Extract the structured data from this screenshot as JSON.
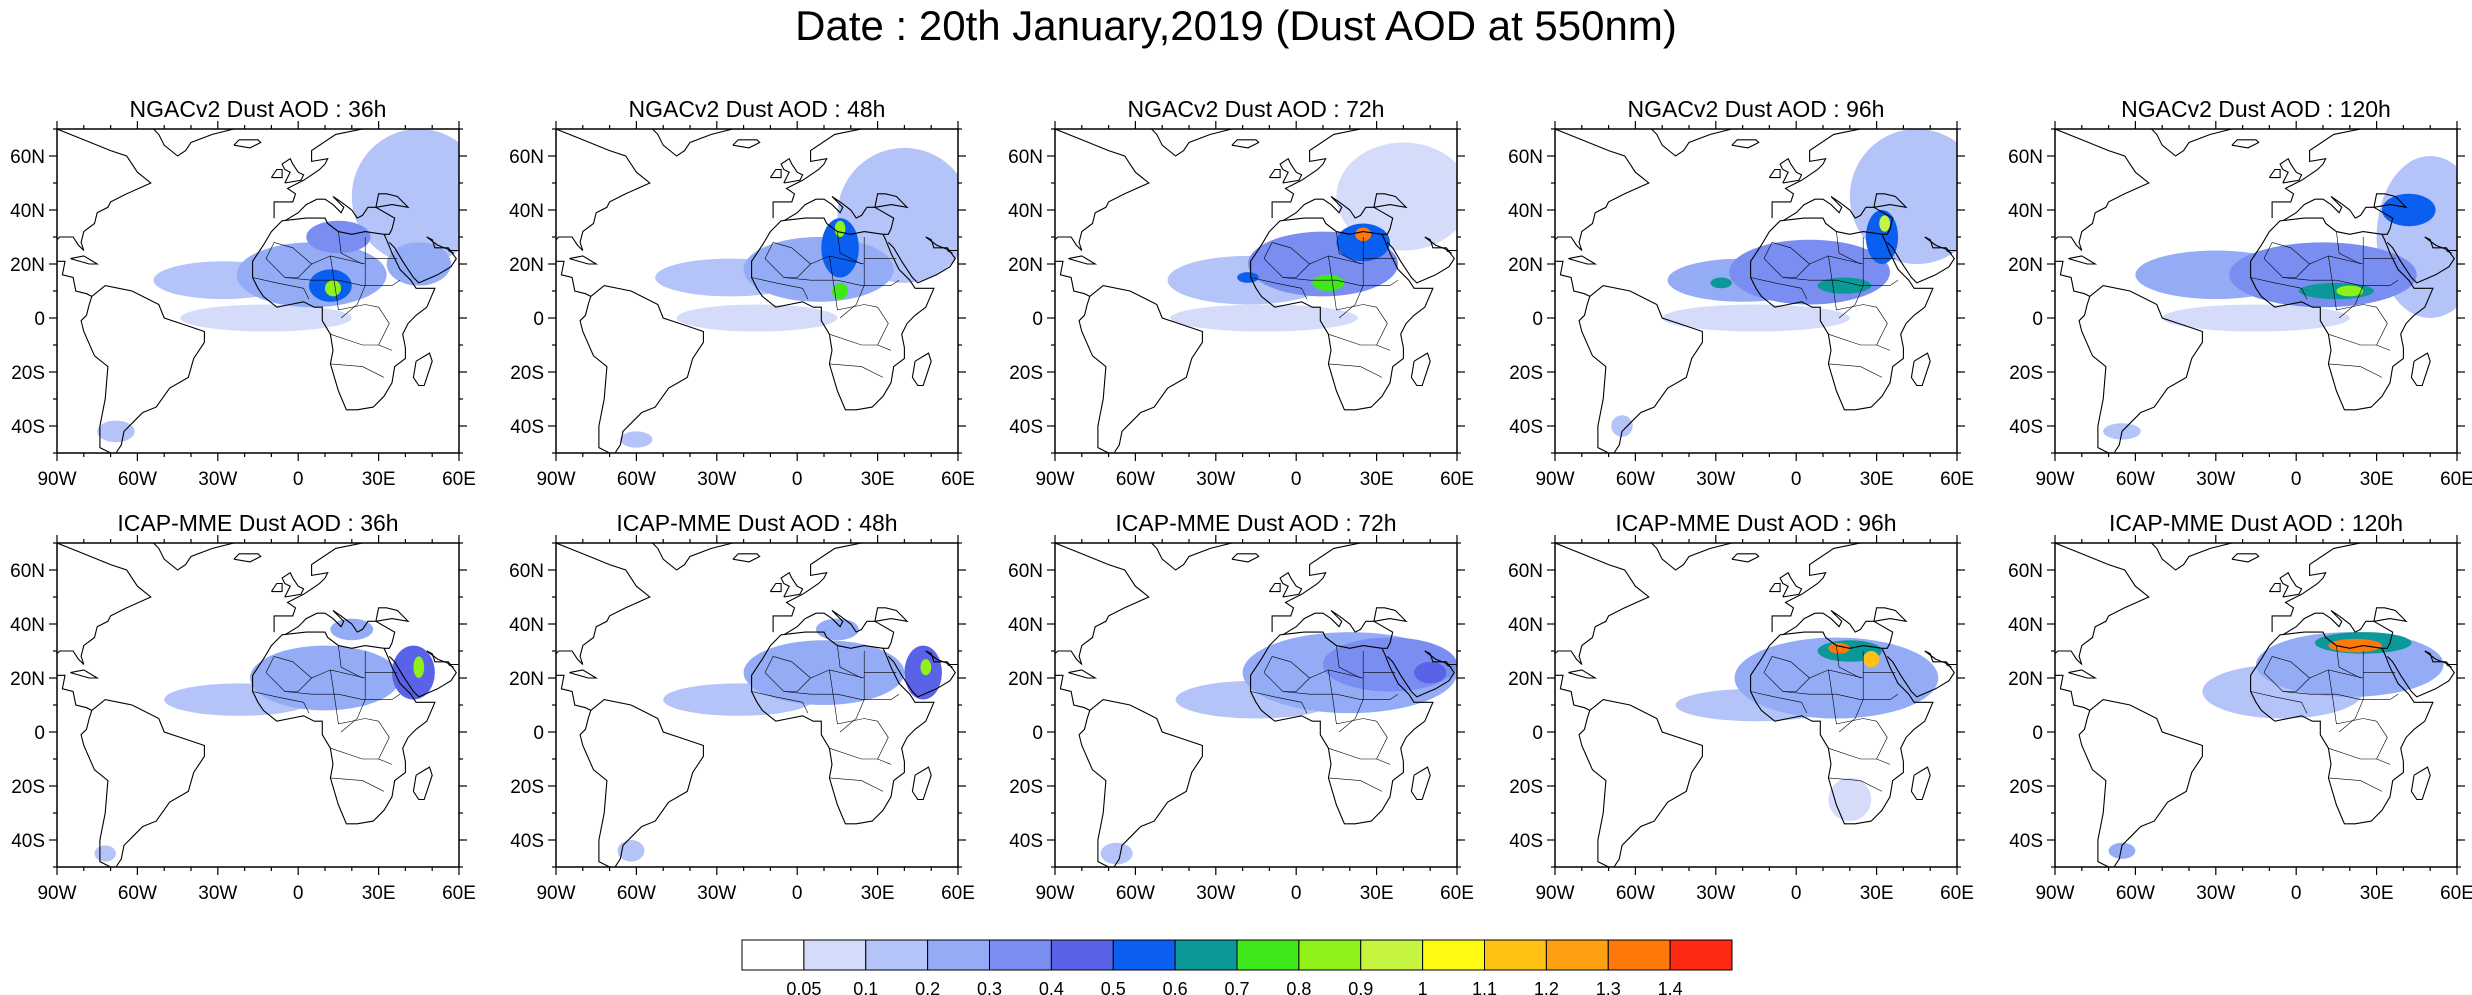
{
  "title": "Date : 20th January,2019 (Dust AOD at 550nm)",
  "panels": [
    {
      "title": "NGACv2 Dust AOD : 36h",
      "model": "NGACv2",
      "forecast_hour": 36
    },
    {
      "title": "NGACv2 Dust AOD : 48h",
      "model": "NGACv2",
      "forecast_hour": 48
    },
    {
      "title": "NGACv2 Dust AOD : 72h",
      "model": "NGACv2",
      "forecast_hour": 72
    },
    {
      "title": "NGACv2 Dust AOD : 96h",
      "model": "NGACv2",
      "forecast_hour": 96
    },
    {
      "title": "NGACv2 Dust AOD : 120h",
      "model": "NGACv2",
      "forecast_hour": 120
    },
    {
      "title": "ICAP-MME Dust AOD : 36h",
      "model": "ICAP-MME",
      "forecast_hour": 36
    },
    {
      "title": "ICAP-MME Dust AOD : 48h",
      "model": "ICAP-MME",
      "forecast_hour": 48
    },
    {
      "title": "ICAP-MME Dust AOD : 72h",
      "model": "ICAP-MME",
      "forecast_hour": 72
    },
    {
      "title": "ICAP-MME Dust AOD : 96h",
      "model": "ICAP-MME",
      "forecast_hour": 96
    },
    {
      "title": "ICAP-MME Dust AOD : 120h",
      "model": "ICAP-MME",
      "forecast_hour": 120
    }
  ],
  "axes": {
    "lon_range": [
      -90,
      60
    ],
    "lat_range": [
      -50,
      70
    ],
    "x_ticks": [
      {
        "value": -90,
        "label": "90W"
      },
      {
        "value": -60,
        "label": "60W"
      },
      {
        "value": -30,
        "label": "30W"
      },
      {
        "value": 0,
        "label": "0"
      },
      {
        "value": 30,
        "label": "30E"
      },
      {
        "value": 60,
        "label": "60E"
      }
    ],
    "y_ticks": [
      {
        "value": 60,
        "label": "60N"
      },
      {
        "value": 40,
        "label": "40N"
      },
      {
        "value": 20,
        "label": "20N"
      },
      {
        "value": 0,
        "label": "0"
      },
      {
        "value": -20,
        "label": "20S"
      },
      {
        "value": -40,
        "label": "40S"
      }
    ]
  },
  "colorbar": {
    "colors": [
      "#ffffff",
      "#d4dcfa",
      "#b4c3f8",
      "#94acf6",
      "#7a8ef2",
      "#5a63e8",
      "#0b5ff0",
      "#0c9898",
      "#3fe81a",
      "#8ef21a",
      "#c6f540",
      "#fffa14",
      "#ffc214",
      "#ffa012",
      "#ff780a",
      "#ff2a14"
    ],
    "labels": [
      "0.05",
      "0.1",
      "0.2",
      "0.3",
      "0.4",
      "0.5",
      "0.6",
      "0.7",
      "0.8",
      "0.9",
      "1",
      "1.1",
      "1.2",
      "1.3",
      "1.4"
    ]
  },
  "chart_data": {
    "type": "heatmap",
    "variable": "Dust AOD at 550nm",
    "date": "20th January,2019",
    "levels": [
      0.05,
      0.1,
      0.2,
      0.3,
      0.4,
      0.5,
      0.6,
      0.7,
      0.8,
      0.9,
      1,
      1.1,
      1.2,
      1.3,
      1.4
    ],
    "fields": [
      {
        "panel": 0,
        "blobs": [
          {
            "lon": -28,
            "lat": 14,
            "rlon": 26,
            "rlat": 7,
            "value": 0.15
          },
          {
            "lon": 5,
            "lat": 16,
            "rlon": 28,
            "rlat": 12,
            "value": 0.25
          },
          {
            "lon": 12,
            "lat": 12,
            "rlon": 8,
            "rlat": 6,
            "value": 0.55
          },
          {
            "lon": 13,
            "lat": 11,
            "rlon": 3,
            "rlat": 3,
            "value": 0.85
          },
          {
            "lon": 15,
            "lat": 30,
            "rlon": 12,
            "rlat": 6,
            "value": 0.3
          },
          {
            "lon": 45,
            "lat": 45,
            "rlon": 25,
            "rlat": 25,
            "value": 0.1
          },
          {
            "lon": 45,
            "lat": 20,
            "rlon": 12,
            "rlat": 8,
            "value": 0.25
          },
          {
            "lon": -12,
            "lat": 0,
            "rlon": 32,
            "rlat": 5,
            "value": 0.08
          },
          {
            "lon": -68,
            "lat": -42,
            "rlon": 7,
            "rlat": 4,
            "value": 0.1
          }
        ]
      },
      {
        "panel": 1,
        "blobs": [
          {
            "lon": -25,
            "lat": 15,
            "rlon": 28,
            "rlat": 7,
            "value": 0.15
          },
          {
            "lon": 8,
            "lat": 18,
            "rlon": 28,
            "rlat": 12,
            "value": 0.25
          },
          {
            "lon": 16,
            "lat": 26,
            "rlon": 7,
            "rlat": 11,
            "value": 0.5
          },
          {
            "lon": 16,
            "lat": 33,
            "rlon": 2,
            "rlat": 3,
            "value": 0.85
          },
          {
            "lon": 16,
            "lat": 10,
            "rlon": 3,
            "rlat": 3,
            "value": 0.75
          },
          {
            "lon": 40,
            "lat": 38,
            "rlon": 25,
            "rlat": 25,
            "value": 0.1
          },
          {
            "lon": -15,
            "lat": 0,
            "rlon": 30,
            "rlat": 5,
            "value": 0.08
          },
          {
            "lon": -60,
            "lat": -45,
            "rlon": 6,
            "rlat": 3,
            "value": 0.1
          }
        ]
      },
      {
        "panel": 2,
        "blobs": [
          {
            "lon": -18,
            "lat": 14,
            "rlon": 30,
            "rlat": 9,
            "value": 0.15
          },
          {
            "lon": 10,
            "lat": 20,
            "rlon": 28,
            "rlat": 12,
            "value": 0.3
          },
          {
            "lon": 25,
            "lat": 28,
            "rlon": 10,
            "rlat": 7,
            "value": 0.55
          },
          {
            "lon": 25,
            "lat": 31,
            "rlon": 3,
            "rlat": 2.5,
            "value": 1.35
          },
          {
            "lon": 12,
            "lat": 13,
            "rlon": 6,
            "rlat": 3,
            "value": 0.75
          },
          {
            "lon": -18,
            "lat": 15,
            "rlon": 4,
            "rlat": 2,
            "value": 0.5
          },
          {
            "lon": -12,
            "lat": 0,
            "rlon": 35,
            "rlat": 5,
            "value": 0.08
          },
          {
            "lon": 40,
            "lat": 45,
            "rlon": 25,
            "rlat": 20,
            "value": 0.08
          }
        ]
      },
      {
        "panel": 3,
        "blobs": [
          {
            "lon": -20,
            "lat": 14,
            "rlon": 28,
            "rlat": 8,
            "value": 0.2
          },
          {
            "lon": 5,
            "lat": 17,
            "rlon": 30,
            "rlat": 12,
            "value": 0.3
          },
          {
            "lon": -28,
            "lat": 13,
            "rlon": 4,
            "rlat": 2,
            "value": 0.65
          },
          {
            "lon": 18,
            "lat": 12,
            "rlon": 10,
            "rlat": 3,
            "value": 0.65
          },
          {
            "lon": 32,
            "lat": 30,
            "rlon": 6,
            "rlat": 10,
            "value": 0.55
          },
          {
            "lon": 33,
            "lat": 35,
            "rlon": 2,
            "rlat": 3,
            "value": 0.9
          },
          {
            "lon": 45,
            "lat": 45,
            "rlon": 25,
            "rlat": 25,
            "value": 0.1
          },
          {
            "lon": -15,
            "lat": 0,
            "rlon": 35,
            "rlat": 5,
            "value": 0.08
          },
          {
            "lon": -65,
            "lat": -40,
            "rlon": 4,
            "rlat": 4,
            "value": 0.1
          }
        ]
      },
      {
        "panel": 4,
        "blobs": [
          {
            "lon": -30,
            "lat": 16,
            "rlon": 30,
            "rlat": 9,
            "value": 0.2
          },
          {
            "lon": 10,
            "lat": 16,
            "rlon": 35,
            "rlat": 12,
            "value": 0.3
          },
          {
            "lon": 15,
            "lat": 10,
            "rlon": 14,
            "rlat": 3,
            "value": 0.65
          },
          {
            "lon": 20,
            "lat": 10,
            "rlon": 5,
            "rlat": 2,
            "value": 0.85
          },
          {
            "lon": 42,
            "lat": 40,
            "rlon": 10,
            "rlat": 6,
            "value": 0.5
          },
          {
            "lon": 50,
            "lat": 30,
            "rlon": 20,
            "rlat": 30,
            "value": 0.1
          },
          {
            "lon": -15,
            "lat": 0,
            "rlon": 35,
            "rlat": 5,
            "value": 0.08
          },
          {
            "lon": -65,
            "lat": -42,
            "rlon": 7,
            "rlat": 3,
            "value": 0.1
          }
        ]
      },
      {
        "panel": 5,
        "blobs": [
          {
            "lon": -22,
            "lat": 12,
            "rlon": 28,
            "rlat": 6,
            "value": 0.1
          },
          {
            "lon": 10,
            "lat": 20,
            "rlon": 28,
            "rlat": 12,
            "value": 0.2
          },
          {
            "lon": 43,
            "lat": 22,
            "rlon": 8,
            "rlat": 10,
            "value": 0.45
          },
          {
            "lon": 45,
            "lat": 24,
            "rlon": 2,
            "rlat": 4,
            "value": 0.85
          },
          {
            "lon": 20,
            "lat": 38,
            "rlon": 8,
            "rlat": 4,
            "value": 0.2
          },
          {
            "lon": -72,
            "lat": -45,
            "rlon": 4,
            "rlat": 3,
            "value": 0.1
          }
        ]
      },
      {
        "panel": 6,
        "blobs": [
          {
            "lon": -22,
            "lat": 12,
            "rlon": 28,
            "rlat": 6,
            "value": 0.1
          },
          {
            "lon": 10,
            "lat": 22,
            "rlon": 30,
            "rlat": 12,
            "value": 0.2
          },
          {
            "lon": 47,
            "lat": 22,
            "rlon": 7,
            "rlat": 10,
            "value": 0.4
          },
          {
            "lon": 48,
            "lat": 24,
            "rlon": 2,
            "rlat": 3,
            "value": 0.8
          },
          {
            "lon": 15,
            "lat": 38,
            "rlon": 8,
            "rlat": 4,
            "value": 0.25
          },
          {
            "lon": -62,
            "lat": -44,
            "rlon": 5,
            "rlat": 4,
            "value": 0.1
          }
        ]
      },
      {
        "panel": 7,
        "blobs": [
          {
            "lon": -15,
            "lat": 12,
            "rlon": 30,
            "rlat": 7,
            "value": 0.1
          },
          {
            "lon": 20,
            "lat": 22,
            "rlon": 40,
            "rlat": 15,
            "value": 0.2
          },
          {
            "lon": 35,
            "lat": 25,
            "rlon": 25,
            "rlat": 10,
            "value": 0.3
          },
          {
            "lon": 50,
            "lat": 22,
            "rlon": 6,
            "rlat": 4,
            "value": 0.4
          },
          {
            "lon": -67,
            "lat": -45,
            "rlon": 6,
            "rlat": 4,
            "value": 0.1
          }
        ]
      },
      {
        "panel": 8,
        "blobs": [
          {
            "lon": -15,
            "lat": 10,
            "rlon": 30,
            "rlat": 6,
            "value": 0.1
          },
          {
            "lon": 15,
            "lat": 20,
            "rlon": 38,
            "rlat": 15,
            "value": 0.2
          },
          {
            "lon": 20,
            "lat": 30,
            "rlon": 12,
            "rlat": 4,
            "value": 0.6
          },
          {
            "lon": 16,
            "lat": 31,
            "rlon": 4,
            "rlat": 2,
            "value": 1.3
          },
          {
            "lon": 28,
            "lat": 27,
            "rlon": 3,
            "rlat": 3,
            "value": 1.1
          },
          {
            "lon": 20,
            "lat": -25,
            "rlon": 8,
            "rlat": 8,
            "value": 0.08
          }
        ]
      },
      {
        "panel": 9,
        "blobs": [
          {
            "lon": -5,
            "lat": 15,
            "rlon": 30,
            "rlat": 10,
            "value": 0.1
          },
          {
            "lon": 20,
            "lat": 25,
            "rlon": 35,
            "rlat": 12,
            "value": 0.2
          },
          {
            "lon": 25,
            "lat": 33,
            "rlon": 18,
            "rlat": 4,
            "value": 0.6
          },
          {
            "lon": 22,
            "lat": 32,
            "rlon": 10,
            "rlat": 2.5,
            "value": 1.3
          },
          {
            "lon": -65,
            "lat": -44,
            "rlon": 5,
            "rlat": 3,
            "value": 0.2
          }
        ]
      }
    ]
  }
}
